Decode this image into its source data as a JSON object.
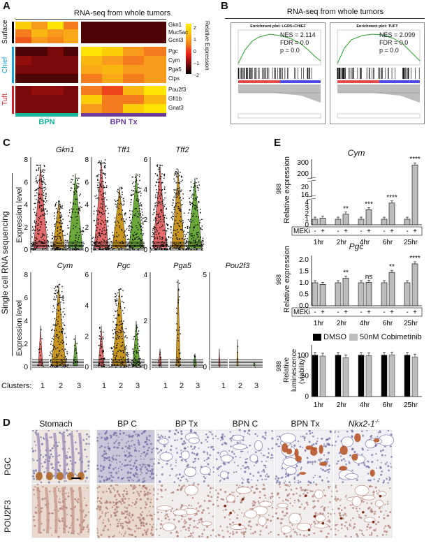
{
  "panelA": {
    "letter": "A",
    "title": "RNA-seq from whole tumors",
    "row_groups": [
      {
        "label": "Surface",
        "color": "#000000"
      },
      {
        "label": "Chief",
        "color": "#1aa0d8"
      },
      {
        "label": "Tuft",
        "color": "#d1232a"
      }
    ],
    "genes": [
      "Gkn1",
      "Muc5ac",
      "Gcnt3",
      "Pgc",
      "Cym",
      "Pga5",
      "Clps",
      "Pou2f3",
      "Gfi1b",
      "Gnat3"
    ],
    "groups": [
      {
        "label": "BPN",
        "color": "#19b3a0"
      },
      {
        "label": "BPN Tx",
        "color": "#6a3d9a"
      }
    ],
    "legend_label": "Relative Expression",
    "legend_ticks": [
      "2",
      "1",
      "0",
      "−1",
      "−2"
    ]
  },
  "panelB": {
    "letter": "B",
    "title": "RNA-seq from whole tumors",
    "plots": [
      {
        "title": "Enrichment plot: LGR5+CHIEF",
        "nes": "NES = 2.114",
        "fdr": "FDR = 0.0",
        "p": "p = 0.0"
      },
      {
        "title": "Enrichment plot: TUFT",
        "nes": "NES = 2.099",
        "fdr": "FDR = 0.0",
        "p": "p = 0.0"
      }
    ]
  },
  "panelC": {
    "letter": "C",
    "side_label": "Single cell RNA sequencing",
    "y_label": "Expression level",
    "clusters_label": "Clusters:",
    "cluster_ticks": [
      "1",
      "2",
      "3"
    ],
    "cluster_colors": [
      "#e26a6a",
      "#c8951e",
      "#6aa83a"
    ],
    "genes": [
      {
        "name": "Gkn1",
        "yticks": [
          "8",
          "6",
          "4",
          "2",
          "0"
        ]
      },
      {
        "name": "Tff1",
        "yticks": [
          "8",
          "6",
          "4",
          "2",
          "0"
        ]
      },
      {
        "name": "Tff2",
        "yticks": [
          "6",
          "4",
          "2",
          "0"
        ]
      },
      {
        "name": "Cym",
        "yticks": [
          "8",
          "6",
          "4",
          "2",
          "0"
        ]
      },
      {
        "name": "Pgc",
        "yticks": [
          "6",
          "4",
          "2",
          "0"
        ]
      },
      {
        "name": "Pga5",
        "yticks": [
          "4",
          "2",
          "0"
        ]
      },
      {
        "name": "Pou2f3",
        "yticks": [
          "5",
          "0"
        ]
      }
    ]
  },
  "panelE": {
    "letter": "E",
    "cym": {
      "title": "Cym",
      "ylabel": "Relative expression",
      "ylabel_top": "988",
      "yticks": [
        "300",
        "200",
        "20",
        "16",
        "4",
        "3",
        "2",
        "1",
        "0"
      ],
      "time_points": [
        "1hr",
        "2hr",
        "4hr",
        "6hr",
        "25hr"
      ],
      "meki_label": "MEKi",
      "signs": [
        "-",
        "+"
      ],
      "sig": [
        "",
        "**",
        "***",
        "****",
        "****"
      ]
    },
    "pgc": {
      "title": "Pgc",
      "ylabel": "Relative expression",
      "ylabel_top": "988",
      "yticks": [
        "2.0",
        "1.5",
        "1.0",
        "0.5",
        "0.0"
      ],
      "time_points": [
        "1hr",
        "2hr",
        "4hr",
        "6hr",
        "25hr"
      ],
      "meki_label": "MEKi",
      "signs": [
        "-",
        "+"
      ],
      "sig": [
        "",
        "**",
        "ns",
        "**",
        "****"
      ]
    },
    "viability": {
      "ylabel": "Relative luminescence (viability)",
      "ylabel_top": "988",
      "yticks": [
        "100",
        "50",
        "0"
      ],
      "time_points": [
        "1hr",
        "2hr",
        "4hr",
        "6hr",
        "25hr"
      ],
      "legend": [
        {
          "label": "DMSO",
          "color": "#000000"
        },
        {
          "label": "50nM Cobimetinib",
          "color": "#bdbdbd"
        }
      ]
    }
  },
  "panelD": {
    "letter": "D",
    "columns": [
      "Stomach",
      "BP C",
      "BP Tx",
      "BPN C",
      "BPN Tx",
      "Nkx2-1"
    ],
    "col6_sup": "-/-",
    "rows": [
      "PGC",
      "POU2F3"
    ]
  },
  "chart_data": [
    {
      "type": "heatmap",
      "title": "RNA-seq from whole tumors",
      "rows": [
        "Gkn1",
        "Muc5ac",
        "Gcnt3",
        "Pgc",
        "Cym",
        "Pga5",
        "Clps",
        "Pou2f3",
        "Gfi1b",
        "Gnat3"
      ],
      "column_groups": [
        "BPN",
        "BPN Tx"
      ],
      "n_columns": 8,
      "values": [
        [
          1.5,
          0.8,
          1.8,
          0.5,
          -1.5,
          -1.5,
          -1.5,
          -1.5
        ],
        [
          0.5,
          1.2,
          0.8,
          1.0,
          -1.5,
          -1.5,
          -1.5,
          -1.5
        ],
        [
          0.2,
          0.8,
          0.6,
          1.0,
          -1.5,
          -1.5,
          -1.5,
          -1.5
        ],
        [
          -1.5,
          -1.5,
          -1.2,
          -1.5,
          1.8,
          1.5,
          0.8,
          0.5
        ],
        [
          -1.0,
          -1.2,
          -1.2,
          -1.2,
          1.2,
          0.8,
          0.5,
          0.8
        ],
        [
          -1.2,
          -1.2,
          -1.2,
          -1.2,
          1.0,
          1.2,
          0.8,
          0.8
        ],
        [
          -1.5,
          -1.5,
          -1.5,
          -1.5,
          0.5,
          1.0,
          0.5,
          0.8
        ],
        [
          -1.2,
          -1.0,
          -1.0,
          -1.2,
          0.5,
          0.0,
          1.2,
          1.8
        ],
        [
          -1.2,
          -1.2,
          -1.2,
          -1.2,
          1.5,
          0.5,
          0.5,
          1.2
        ],
        [
          -1.2,
          -1.2,
          -1.2,
          -1.2,
          0.8,
          0.5,
          1.5,
          1.8
        ]
      ],
      "color_range": [
        -2,
        2
      ]
    },
    {
      "type": "bar",
      "title": "Cym",
      "categories": [
        "1hr",
        "2hr",
        "4hr",
        "6hr",
        "25hr"
      ],
      "series": [
        {
          "name": "-",
          "values": [
            1.0,
            1.0,
            1.0,
            1.0,
            1.0
          ]
        },
        {
          "name": "+",
          "values": [
            1.2,
            1.9,
            2.7,
            3.9,
            280
          ]
        }
      ]
    },
    {
      "type": "bar",
      "title": "Pgc",
      "categories": [
        "1hr",
        "2hr",
        "4hr",
        "6hr",
        "25hr"
      ],
      "series": [
        {
          "name": "-",
          "values": [
            1.0,
            1.0,
            1.0,
            1.0,
            1.0
          ]
        },
        {
          "name": "+",
          "values": [
            0.93,
            1.2,
            1.02,
            1.45,
            1.82
          ]
        }
      ],
      "ylim": [
        0,
        2
      ]
    },
    {
      "type": "bar",
      "categories": [
        "1hr",
        "2hr",
        "4hr",
        "6hr",
        "25hr"
      ],
      "series": [
        {
          "name": "DMSO",
          "values": [
            100,
            100,
            100,
            100,
            100
          ]
        },
        {
          "name": "50nM Cobimetinib",
          "values": [
            98,
            94,
            99,
            101,
            96
          ]
        }
      ],
      "ylim": [
        0,
        125
      ]
    }
  ]
}
